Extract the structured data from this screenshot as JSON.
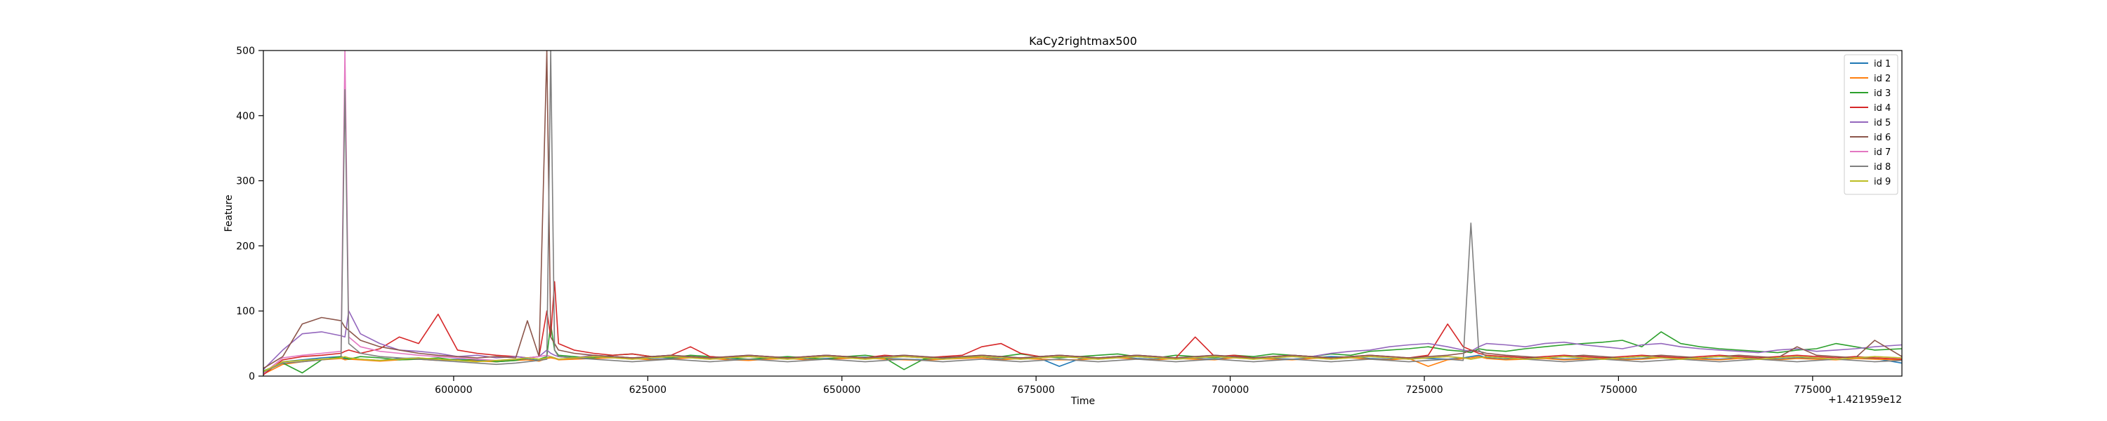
{
  "chart_data": {
    "type": "line",
    "title": "KaCy2rightmax500",
    "xlabel": "Time",
    "ylabel": "Feature",
    "x_offset_label": "+1.421959e12",
    "xlim": [
      575500,
      786500
    ],
    "ylim": [
      0,
      500
    ],
    "x_ticks": [
      600000,
      625000,
      650000,
      675000,
      700000,
      725000,
      750000,
      775000
    ],
    "x_tick_labels": [
      "600000",
      "625000",
      "650000",
      "675000",
      "700000",
      "725000",
      "750000",
      "775000"
    ],
    "y_ticks": [
      0,
      100,
      200,
      300,
      400,
      500
    ],
    "y_tick_labels": [
      "0",
      "100",
      "200",
      "300",
      "400",
      "500"
    ],
    "grid": false,
    "legend_position": "top-right",
    "x": [
      575500,
      578000,
      580500,
      583000,
      585500,
      586000,
      586500,
      588000,
      590500,
      593000,
      595500,
      598000,
      600500,
      603000,
      605500,
      608000,
      609500,
      611000,
      612000,
      612500,
      613000,
      613500,
      615500,
      618000,
      620500,
      623000,
      625500,
      628000,
      630500,
      633000,
      635500,
      638000,
      640500,
      643000,
      645500,
      648000,
      650500,
      653000,
      655500,
      658000,
      660500,
      663000,
      665500,
      668000,
      670500,
      673000,
      675500,
      678000,
      680500,
      683000,
      685500,
      688000,
      690500,
      693000,
      695500,
      698000,
      700500,
      703000,
      705500,
      708000,
      710500,
      713000,
      715500,
      718000,
      720500,
      723000,
      725500,
      728000,
      730000,
      731000,
      732000,
      733000,
      735500,
      738000,
      740500,
      743000,
      745500,
      748000,
      750500,
      753000,
      755500,
      758000,
      760500,
      763000,
      765500,
      768000,
      770500,
      773000,
      775500,
      778000,
      780500,
      783000,
      786500
    ],
    "series": [
      {
        "name": "id 1",
        "color": "#1f77b4",
        "values": [
          5,
          22,
          25,
          28,
          30,
          26,
          28,
          26,
          24,
          27,
          28,
          25,
          26,
          24,
          22,
          25,
          26,
          24,
          28,
          30,
          28,
          26,
          27,
          28,
          30,
          28,
          26,
          27,
          29,
          28,
          26,
          25,
          27,
          28,
          26,
          27,
          28,
          29,
          27,
          26,
          25,
          27,
          28,
          30,
          26,
          28,
          27,
          15,
          26,
          28,
          29,
          27,
          26,
          28,
          27,
          26,
          29,
          28,
          27,
          26,
          28,
          30,
          29,
          27,
          26,
          28,
          27,
          26,
          28,
          30,
          32,
          28,
          26,
          27,
          28,
          26,
          27,
          28,
          26,
          27,
          29,
          28,
          27,
          26,
          28,
          27,
          26,
          28,
          27,
          26,
          28,
          27,
          20
        ]
      },
      {
        "name": "id 2",
        "color": "#ff7f0e",
        "values": [
          3,
          18,
          22,
          25,
          27,
          25,
          26,
          25,
          23,
          25,
          26,
          24,
          25,
          23,
          22,
          24,
          25,
          23,
          27,
          28,
          27,
          25,
          26,
          27,
          28,
          27,
          25,
          26,
          28,
          27,
          25,
          24,
          26,
          27,
          25,
          26,
          27,
          28,
          26,
          25,
          24,
          26,
          27,
          28,
          25,
          27,
          26,
          25,
          25,
          27,
          28,
          26,
          25,
          27,
          26,
          25,
          28,
          27,
          26,
          25,
          27,
          28,
          28,
          26,
          25,
          27,
          15,
          25,
          27,
          28,
          30,
          27,
          25,
          26,
          27,
          25,
          26,
          27,
          25,
          26,
          28,
          27,
          26,
          25,
          27,
          26,
          25,
          27,
          26,
          25,
          27,
          26,
          25
        ]
      },
      {
        "name": "id 3",
        "color": "#2ca02c",
        "values": [
          8,
          20,
          5,
          25,
          30,
          28,
          26,
          30,
          28,
          25,
          26,
          28,
          24,
          26,
          22,
          24,
          28,
          26,
          30,
          80,
          40,
          32,
          30,
          28,
          32,
          34,
          30,
          28,
          32,
          30,
          28,
          26,
          28,
          30,
          28,
          26,
          30,
          32,
          28,
          10,
          26,
          30,
          28,
          32,
          30,
          34,
          30,
          28,
          30,
          32,
          34,
          30,
          28,
          32,
          30,
          28,
          32,
          30,
          34,
          32,
          30,
          34,
          32,
          38,
          40,
          42,
          45,
          40,
          38,
          36,
          42,
          40,
          38,
          42,
          45,
          48,
          50,
          52,
          55,
          45,
          68,
          50,
          45,
          42,
          40,
          38,
          36,
          40,
          42,
          50,
          45,
          40,
          42
        ]
      },
      {
        "name": "id 4",
        "color": "#d62728",
        "values": [
          2,
          25,
          30,
          32,
          35,
          38,
          40,
          35,
          42,
          60,
          50,
          95,
          40,
          35,
          32,
          30,
          28,
          30,
          100,
          60,
          145,
          50,
          40,
          35,
          32,
          34,
          30,
          32,
          45,
          30,
          28,
          32,
          30,
          28,
          30,
          32,
          30,
          28,
          32,
          30,
          28,
          30,
          32,
          45,
          50,
          35,
          30,
          32,
          30,
          28,
          30,
          32,
          30,
          28,
          60,
          30,
          32,
          28,
          30,
          32,
          30,
          28,
          30,
          32,
          30,
          28,
          32,
          80,
          45,
          40,
          35,
          32,
          30,
          28,
          30,
          32,
          30,
          28,
          30,
          32,
          30,
          28,
          30,
          32,
          30,
          28,
          30,
          32,
          30,
          28,
          30,
          28,
          26
        ]
      },
      {
        "name": "id 5",
        "color": "#9467bd",
        "values": [
          10,
          40,
          65,
          68,
          62,
          60,
          100,
          65,
          50,
          40,
          38,
          35,
          30,
          32,
          28,
          30,
          28,
          30,
          40,
          35,
          32,
          30,
          28,
          32,
          30,
          28,
          30,
          32,
          30,
          28,
          30,
          32,
          30,
          28,
          30,
          32,
          30,
          28,
          30,
          32,
          30,
          28,
          30,
          32,
          30,
          28,
          30,
          32,
          30,
          28,
          30,
          32,
          30,
          28,
          30,
          32,
          30,
          28,
          30,
          32,
          30,
          35,
          38,
          40,
          45,
          48,
          50,
          45,
          40,
          38,
          45,
          50,
          48,
          45,
          50,
          52,
          48,
          45,
          42,
          48,
          50,
          45,
          42,
          40,
          38,
          36,
          40,
          42,
          38,
          40,
          42,
          45,
          48
        ]
      },
      {
        "name": "id 6",
        "color": "#8c564b",
        "values": [
          12,
          30,
          80,
          90,
          85,
          75,
          70,
          55,
          45,
          40,
          35,
          32,
          30,
          28,
          30,
          28,
          85,
          30,
          500,
          60,
          50,
          40,
          35,
          32,
          30,
          28,
          30,
          32,
          30,
          28,
          30,
          32,
          30,
          28,
          30,
          32,
          30,
          28,
          30,
          32,
          30,
          28,
          30,
          32,
          30,
          28,
          30,
          32,
          30,
          28,
          30,
          32,
          30,
          28,
          30,
          32,
          30,
          28,
          30,
          32,
          30,
          28,
          30,
          32,
          30,
          28,
          30,
          32,
          35,
          40,
          38,
          35,
          32,
          30,
          28,
          30,
          32,
          30,
          28,
          30,
          32,
          30,
          28,
          30,
          32,
          30,
          28,
          45,
          32,
          30,
          28,
          55,
          30
        ]
      },
      {
        "name": "id 7",
        "color": "#e377c2",
        "values": [
          4,
          28,
          32,
          35,
          38,
          500,
          60,
          45,
          38,
          35,
          32,
          30,
          28,
          26,
          24,
          26,
          28,
          30,
          32,
          30,
          28,
          26,
          28,
          30,
          28,
          26,
          28,
          30,
          28,
          26,
          28,
          30,
          28,
          26,
          28,
          30,
          28,
          26,
          28,
          30,
          28,
          26,
          28,
          30,
          28,
          26,
          28,
          30,
          28,
          26,
          28,
          30,
          28,
          26,
          28,
          30,
          28,
          26,
          28,
          30,
          28,
          26,
          28,
          30,
          28,
          26,
          28,
          30,
          28,
          26,
          28,
          30,
          28,
          26,
          28,
          30,
          28,
          26,
          28,
          30,
          28,
          26,
          28,
          30,
          28,
          26,
          28,
          30,
          28,
          26,
          28,
          30,
          28
        ]
      },
      {
        "name": "id 8",
        "color": "#7f7f7f",
        "values": [
          6,
          20,
          22,
          25,
          28,
          440,
          50,
          35,
          30,
          28,
          26,
          24,
          22,
          20,
          18,
          20,
          22,
          24,
          26,
          500,
          40,
          30,
          28,
          26,
          24,
          22,
          24,
          26,
          24,
          22,
          24,
          26,
          24,
          22,
          24,
          26,
          24,
          22,
          24,
          26,
          24,
          22,
          24,
          26,
          24,
          22,
          24,
          26,
          24,
          22,
          24,
          26,
          24,
          22,
          24,
          26,
          24,
          22,
          24,
          26,
          24,
          22,
          24,
          26,
          24,
          22,
          24,
          26,
          24,
          235,
          40,
          30,
          28,
          26,
          24,
          22,
          24,
          26,
          24,
          22,
          24,
          26,
          24,
          22,
          24,
          26,
          24,
          22,
          24,
          26,
          24,
          22,
          24
        ]
      },
      {
        "name": "id 9",
        "color": "#bcbd22",
        "values": [
          7,
          22,
          24,
          26,
          28,
          30,
          28,
          26,
          24,
          26,
          28,
          26,
          24,
          22,
          24,
          26,
          28,
          26,
          28,
          30,
          28,
          26,
          28,
          30,
          28,
          26,
          28,
          30,
          28,
          26,
          28,
          30,
          28,
          26,
          28,
          30,
          28,
          26,
          28,
          30,
          28,
          26,
          28,
          30,
          28,
          26,
          28,
          30,
          28,
          26,
          28,
          30,
          28,
          26,
          28,
          30,
          28,
          26,
          28,
          30,
          28,
          26,
          28,
          30,
          28,
          26,
          28,
          30,
          28,
          26,
          28,
          30,
          28,
          26,
          28,
          30,
          28,
          26,
          28,
          30,
          28,
          26,
          28,
          30,
          28,
          26,
          28,
          30,
          28,
          26,
          28,
          30,
          28
        ]
      }
    ]
  }
}
